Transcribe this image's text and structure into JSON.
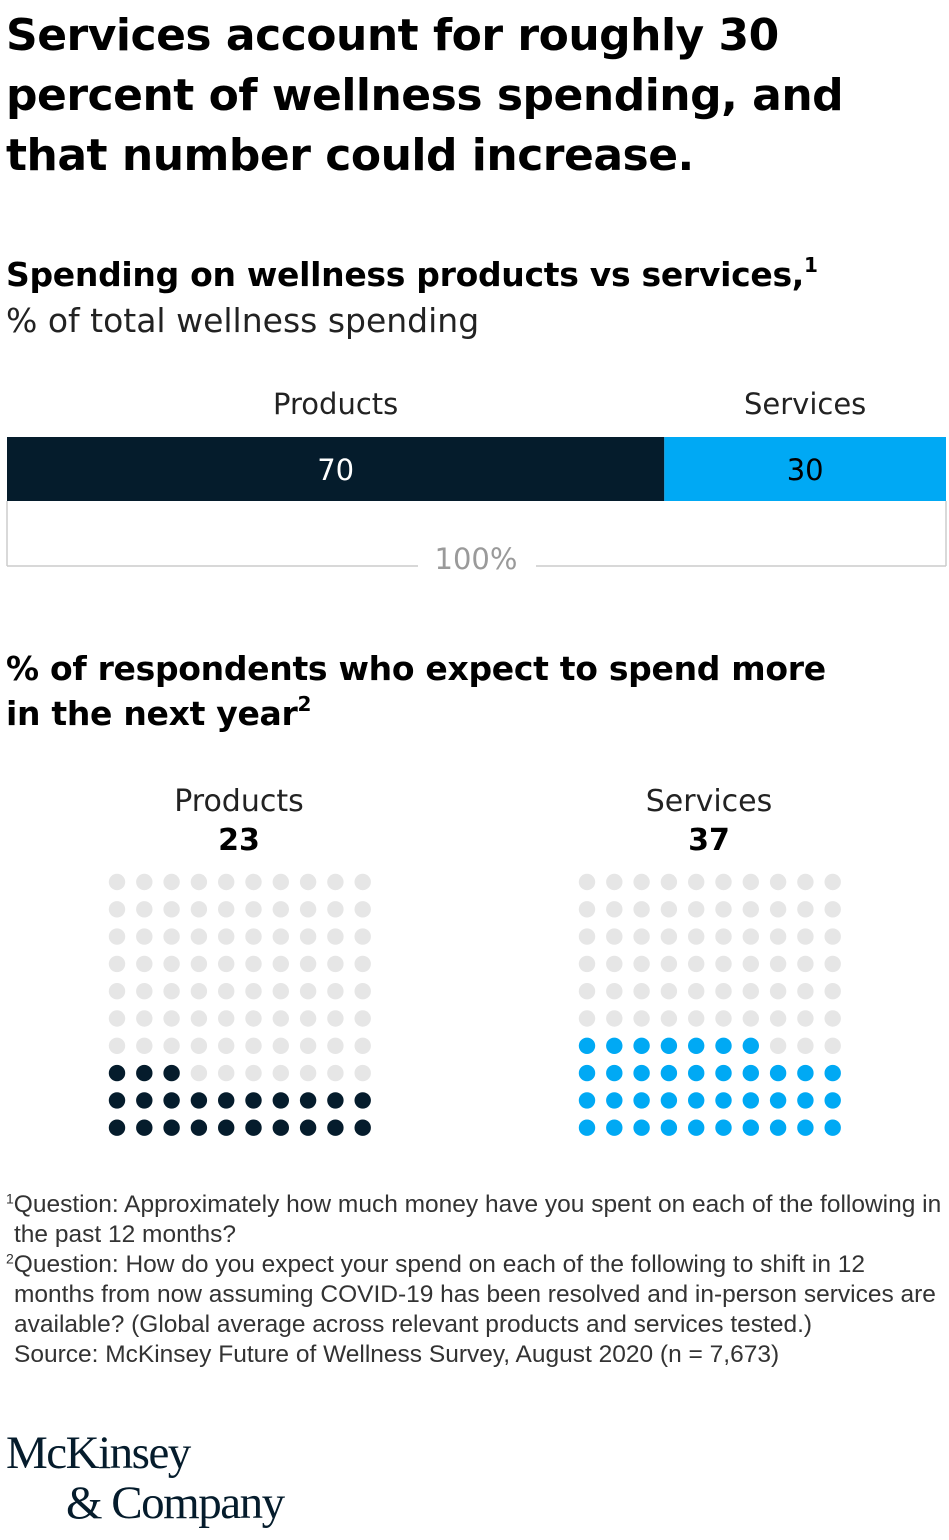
{
  "headline": "Services account for roughly 30 percent of wellness spending, and that number could increase.",
  "chart1": {
    "title": "Spending on wellness products vs services,",
    "title_note": "1",
    "unit_label": "% of total wellness spending",
    "total_label": "100%"
  },
  "chart2": {
    "title": "% of respondents who expect to spend more in the next year",
    "title_note": "2"
  },
  "chart_data": [
    {
      "type": "bar",
      "orientation": "horizontal-stacked",
      "title": "Spending on wellness products vs services",
      "ylabel": "% of total wellness spending",
      "total_label": "100%",
      "series": [
        {
          "name": "Products",
          "value": 70,
          "color": "#051c2c",
          "label_color": "#ffffff"
        },
        {
          "name": "Services",
          "value": 30,
          "color": "#00a9f4",
          "label_color": "#000000"
        }
      ],
      "xlim": [
        0,
        100
      ]
    },
    {
      "type": "waffle",
      "title": "% of respondents who expect to spend more in the next year",
      "grid": [
        10,
        10
      ],
      "empty_color": "#e6e6e6",
      "series": [
        {
          "name": "Products",
          "value": 23,
          "color": "#051c2c"
        },
        {
          "name": "Services",
          "value": 37,
          "color": "#00a9f4"
        }
      ]
    }
  ],
  "footnotes": [
    {
      "marker": "1",
      "text": "Question: Approximately how much money have you spent on each of the following in the past 12 months?"
    },
    {
      "marker": "2",
      "text": "Question: How do you expect your spend on each of the following to shift in 12 months from now assuming COVID-19 has been resolved and in-person services are available? (Global average across relevant products and services tested.)"
    }
  ],
  "source": "Source: McKinsey Future of Wellness Survey, August 2020 (n = 7,673)",
  "logo": {
    "line1": "McKinsey",
    "line2": "& Company"
  }
}
